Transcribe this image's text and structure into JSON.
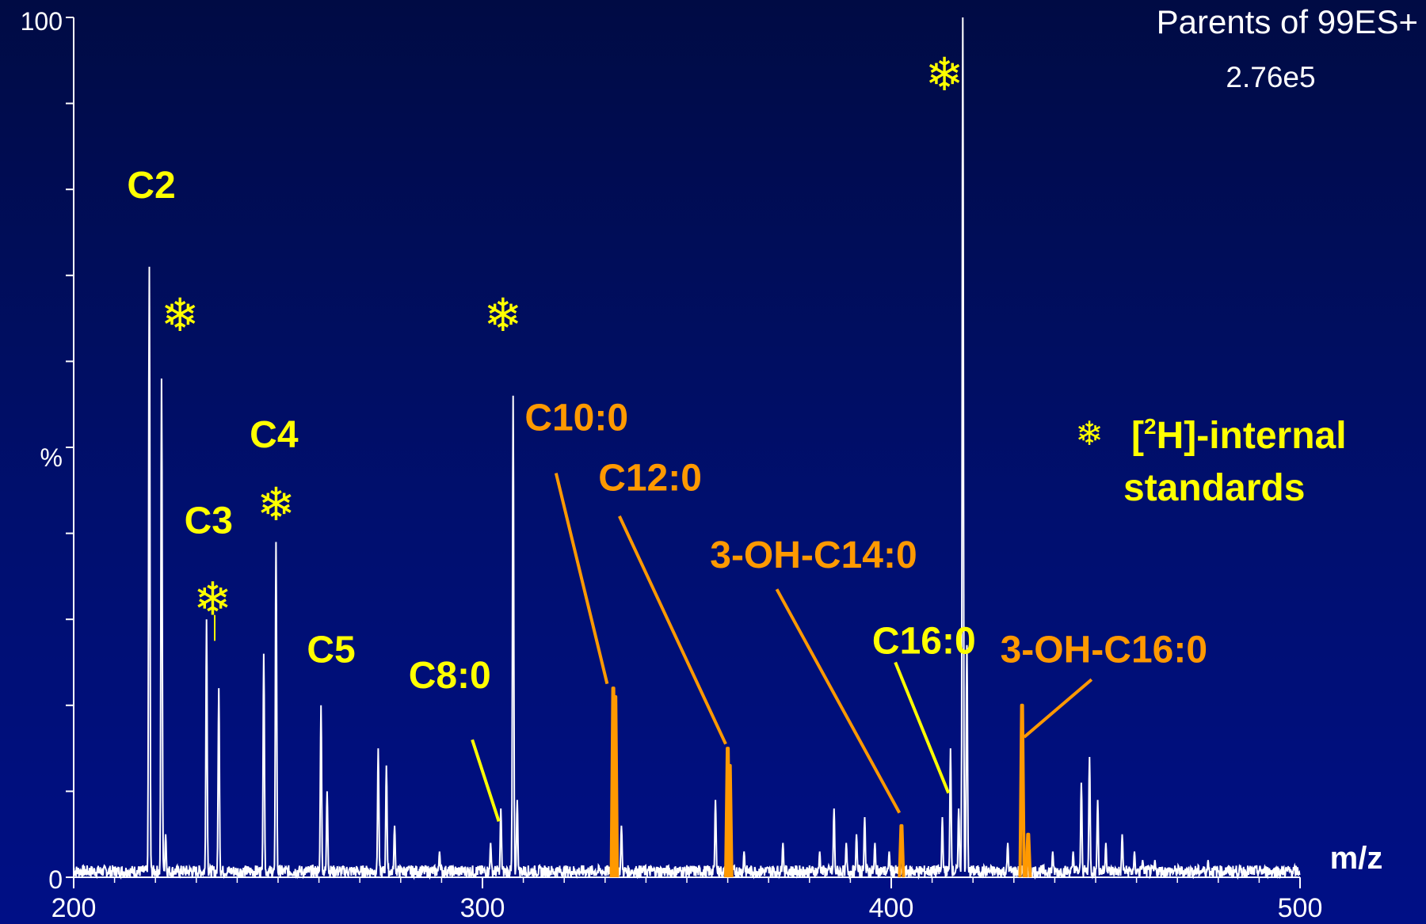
{
  "chart_data": {
    "type": "line",
    "title": "Parents of 99ES+",
    "subtitle": "2.76e5",
    "xlabel": "m/z",
    "ylabel": "%",
    "xlim": [
      200,
      500
    ],
    "ylim": [
      0,
      100
    ],
    "x_tick_labels": [
      "200",
      "300",
      "400",
      "500"
    ],
    "y_tick_labels": [
      "0",
      "%",
      "100"
    ],
    "series": [
      {
        "color": "#ffffff",
        "peaks": [
          {
            "x": 218.5,
            "y": 71
          },
          {
            "x": 221.5,
            "y": 58
          },
          {
            "x": 222.5,
            "y": 5
          },
          {
            "x": 232.5,
            "y": 30
          },
          {
            "x": 235.5,
            "y": 22
          },
          {
            "x": 246.5,
            "y": 26
          },
          {
            "x": 249.5,
            "y": 39
          },
          {
            "x": 260.5,
            "y": 20
          },
          {
            "x": 262,
            "y": 10
          },
          {
            "x": 274.5,
            "y": 15
          },
          {
            "x": 276.5,
            "y": 13
          },
          {
            "x": 278.5,
            "y": 6
          },
          {
            "x": 289.5,
            "y": 3
          },
          {
            "x": 302,
            "y": 4
          },
          {
            "x": 304.5,
            "y": 8
          },
          {
            "x": 307.5,
            "y": 56
          },
          {
            "x": 308.5,
            "y": 9
          },
          {
            "x": 334,
            "y": 6
          },
          {
            "x": 357,
            "y": 9
          },
          {
            "x": 364,
            "y": 3
          },
          {
            "x": 373.5,
            "y": 4
          },
          {
            "x": 382.5,
            "y": 3
          },
          {
            "x": 386,
            "y": 8
          },
          {
            "x": 389,
            "y": 4
          },
          {
            "x": 391.5,
            "y": 5
          },
          {
            "x": 393.5,
            "y": 7
          },
          {
            "x": 396,
            "y": 4
          },
          {
            "x": 399.5,
            "y": 3
          },
          {
            "x": 412.5,
            "y": 7
          },
          {
            "x": 414.5,
            "y": 15
          },
          {
            "x": 416.5,
            "y": 8
          },
          {
            "x": 417.5,
            "y": 100
          },
          {
            "x": 418.5,
            "y": 27
          },
          {
            "x": 428.5,
            "y": 4
          },
          {
            "x": 439.5,
            "y": 3
          },
          {
            "x": 444.5,
            "y": 3
          },
          {
            "x": 446.5,
            "y": 11
          },
          {
            "x": 448.5,
            "y": 14
          },
          {
            "x": 450.5,
            "y": 9
          },
          {
            "x": 452.5,
            "y": 4
          },
          {
            "x": 456.5,
            "y": 5
          },
          {
            "x": 459.5,
            "y": 3
          },
          {
            "x": 461.5,
            "y": 2
          },
          {
            "x": 464.5,
            "y": 2
          },
          {
            "x": 477.5,
            "y": 2
          }
        ]
      },
      {
        "color": "#ff9900",
        "peaks": [
          {
            "x": 332,
            "y": 22
          },
          {
            "x": 332.5,
            "y": 21
          },
          {
            "x": 360,
            "y": 15
          },
          {
            "x": 360.5,
            "y": 13
          },
          {
            "x": 402.5,
            "y": 6
          },
          {
            "x": 432,
            "y": 20
          },
          {
            "x": 433.5,
            "y": 5
          }
        ]
      }
    ],
    "annotations": [
      {
        "text": "C2",
        "x": 219,
        "y": 79,
        "color": "#ffff00"
      },
      {
        "text": "C3",
        "x": 233,
        "y": 40,
        "color": "#ffff00"
      },
      {
        "text": "C4",
        "x": 249,
        "y": 50,
        "color": "#ffff00"
      },
      {
        "text": "C5",
        "x": 263,
        "y": 25,
        "color": "#ffff00"
      },
      {
        "text": "C8:0",
        "x": 292,
        "y": 22,
        "color": "#ffff00"
      },
      {
        "text": "C10:0",
        "x": 323,
        "y": 52,
        "color": "#ff9900"
      },
      {
        "text": "C12:0",
        "x": 341,
        "y": 45,
        "color": "#ff9900"
      },
      {
        "text": "3-OH-C14:0",
        "x": 381,
        "y": 36,
        "color": "#ff9900"
      },
      {
        "text": "C16:0",
        "x": 408,
        "y": 26,
        "color": "#ffff00"
      },
      {
        "text": "3-OH-C16:0",
        "x": 452,
        "y": 25,
        "color": "#ff9900"
      }
    ],
    "legend": {
      "symbol": "❄",
      "text_parts": [
        "[",
        "2",
        "H]-internal",
        "standards"
      ],
      "placement": "right"
    },
    "star_markers": [
      {
        "x": 226,
        "y": 65
      },
      {
        "x": 234,
        "y": 32
      },
      {
        "x": 249.5,
        "y": 43
      },
      {
        "x": 305,
        "y": 65
      },
      {
        "x": 413,
        "y": 93
      }
    ]
  }
}
